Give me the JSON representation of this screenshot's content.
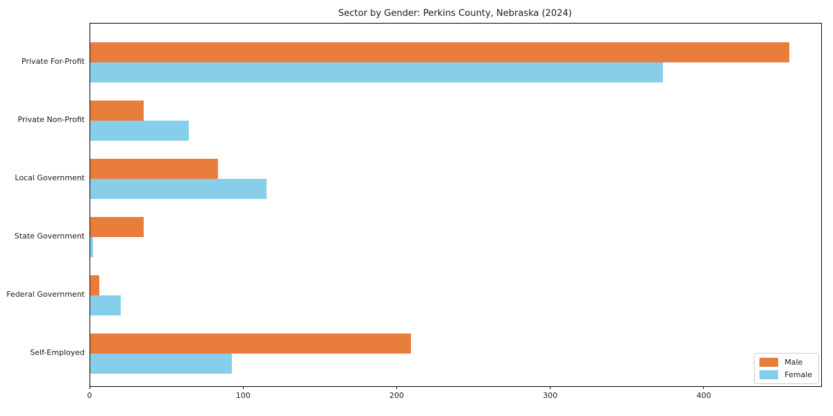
{
  "title": "Sector by Gender: Perkins County, Nebraska (2024)",
  "chart_data": {
    "type": "bar",
    "orientation": "horizontal",
    "title": "Sector by Gender: Perkins County, Nebraska (2024)",
    "categories": [
      "Private For-Profit",
      "Private Non-Profit",
      "Local Government",
      "State Government",
      "Federal Government",
      "Self-Employed"
    ],
    "series": [
      {
        "name": "Male",
        "color": "#e87d3c",
        "values": [
          455,
          35,
          83,
          35,
          6,
          209
        ]
      },
      {
        "name": "Female",
        "color": "#87ceeb",
        "values": [
          373,
          64,
          115,
          2,
          20,
          92
        ]
      }
    ],
    "xlabel": "",
    "ylabel": "",
    "xlim": [
      0,
      476
    ],
    "xticks": [
      0,
      100,
      200,
      300,
      400
    ],
    "grid": false,
    "legend_position": "lower right"
  }
}
